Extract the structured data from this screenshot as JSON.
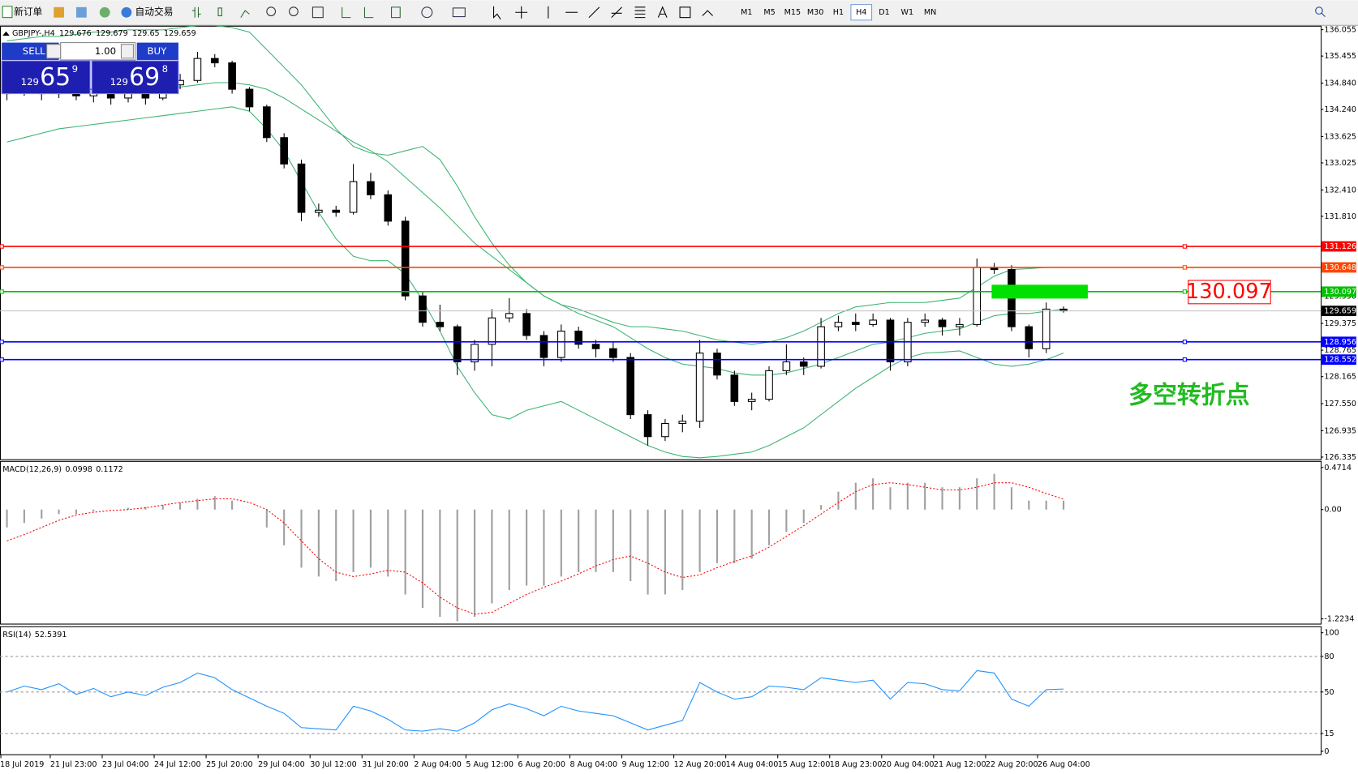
{
  "toolbar": {
    "new_order": "新订单",
    "auto_trading": "自动交易",
    "timeframes": [
      {
        "label": "M1"
      },
      {
        "label": "M5"
      },
      {
        "label": "M15"
      },
      {
        "label": "M30"
      },
      {
        "label": "H1"
      },
      {
        "label": "H4",
        "active": true
      },
      {
        "label": "D1"
      },
      {
        "label": "W1"
      },
      {
        "label": "MN"
      }
    ]
  },
  "trade_panel": {
    "sell": "SELL",
    "buy": "BUY",
    "lot": {
      "value": 1,
      "label": "1.00"
    },
    "sell_price": {
      "small": "129",
      "big": "65",
      "pip": "9"
    },
    "buy_price": {
      "small": "129",
      "big": "69",
      "pip": "8"
    }
  },
  "time_labels": [
    "18 Jul 2019",
    "21 Jul 23:00",
    "23 Jul 04:00",
    "24 Jul 12:00",
    "25 Jul 20:00",
    "29 Jul 04:00",
    "30 Jul 12:00",
    "31 Jul 20:00",
    "2 Aug 04:00",
    "5 Aug 12:00",
    "6 Aug 20:00",
    "8 Aug 04:00",
    "9 Aug 12:00",
    "12 Aug 20:00",
    "14 Aug 04:00",
    "15 Aug 12:00",
    "18 Aug 23:00",
    "20 Aug 04:00",
    "21 Aug 12:00",
    "22 Aug 20:00",
    "26 Aug 04:00"
  ],
  "chart_data": [
    {
      "type": "candlestick",
      "symbol": "GBPJPY-,H4",
      "header_values": [
        129.676,
        129.679,
        129.65,
        129.659
      ],
      "ylim": [
        126.276,
        136.134
      ],
      "yticks": [
        136.055,
        135.455,
        {
          "value": 134.84,
          "label": "134.840"
        },
        {
          "value": 134.24,
          "label": "134.240"
        },
        133.625,
        133.025,
        {
          "value": 132.41,
          "label": "132.410"
        },
        {
          "value": 131.81,
          "label": "131.810"
        },
        {
          "value": 129.99,
          "label": "129.990"
        },
        129.375,
        128.765,
        128.165,
        {
          "value": 127.55,
          "label": "127.550"
        },
        126.935,
        126.335
      ],
      "candles": [
        [
          134.6,
          134.8,
          134.45,
          134.65
        ],
        [
          134.65,
          134.85,
          134.55,
          134.7
        ],
        [
          134.7,
          134.8,
          134.45,
          134.6
        ],
        [
          134.6,
          134.9,
          134.5,
          134.75
        ],
        [
          134.75,
          134.85,
          134.45,
          134.55
        ],
        [
          134.55,
          134.8,
          134.4,
          134.7
        ],
        [
          134.7,
          134.75,
          134.35,
          134.5
        ],
        [
          134.5,
          134.75,
          134.4,
          134.65
        ],
        [
          134.65,
          134.7,
          134.35,
          134.5
        ],
        [
          134.5,
          134.95,
          134.45,
          134.8
        ],
        [
          134.8,
          135.05,
          134.7,
          134.9
        ],
        [
          134.9,
          135.55,
          134.85,
          135.4
        ],
        [
          135.4,
          135.5,
          135.2,
          135.3
        ],
        [
          135.3,
          135.35,
          134.6,
          134.7
        ],
        [
          134.7,
          134.75,
          134.2,
          134.3
        ],
        [
          134.3,
          134.35,
          133.5,
          133.6
        ],
        [
          133.6,
          133.7,
          132.9,
          133.0
        ],
        [
          133.0,
          133.1,
          131.7,
          131.9
        ],
        [
          131.9,
          132.1,
          131.8,
          131.95
        ],
        [
          131.95,
          132.05,
          131.8,
          131.9
        ],
        [
          131.9,
          133.0,
          131.85,
          132.6
        ],
        [
          132.6,
          132.8,
          132.2,
          132.3
        ],
        [
          132.3,
          132.4,
          131.6,
          131.7
        ],
        [
          131.7,
          131.8,
          129.9,
          130.0
        ],
        [
          130.0,
          130.1,
          129.3,
          129.4
        ],
        [
          129.4,
          129.8,
          129.2,
          129.3
        ],
        [
          129.3,
          129.35,
          128.2,
          128.5
        ],
        [
          128.5,
          129.0,
          128.3,
          128.9
        ],
        [
          128.9,
          129.7,
          128.4,
          129.5
        ],
        [
          129.5,
          129.95,
          129.4,
          129.6
        ],
        [
          129.6,
          129.7,
          129.0,
          129.1
        ],
        [
          129.1,
          129.2,
          128.4,
          128.6
        ],
        [
          128.6,
          129.35,
          128.5,
          129.2
        ],
        [
          129.2,
          129.3,
          128.8,
          128.9
        ],
        [
          128.9,
          129.0,
          128.6,
          128.8
        ],
        [
          128.8,
          128.95,
          128.5,
          128.6
        ],
        [
          128.6,
          128.7,
          127.2,
          127.3
        ],
        [
          127.3,
          127.4,
          126.6,
          126.8
        ],
        [
          126.8,
          127.2,
          126.7,
          127.1
        ],
        [
          127.1,
          127.3,
          126.9,
          127.15
        ],
        [
          127.15,
          129.0,
          127.0,
          128.7
        ],
        [
          128.7,
          128.8,
          128.1,
          128.2
        ],
        [
          128.2,
          128.3,
          127.5,
          127.6
        ],
        [
          127.6,
          127.8,
          127.4,
          127.65
        ],
        [
          127.65,
          128.4,
          127.6,
          128.3
        ],
        [
          128.3,
          128.9,
          128.2,
          128.5
        ],
        [
          128.5,
          128.6,
          128.2,
          128.4
        ],
        [
          128.4,
          129.5,
          128.35,
          129.3
        ],
        [
          129.3,
          129.55,
          129.2,
          129.4
        ],
        [
          129.4,
          129.6,
          129.2,
          129.35
        ],
        [
          129.35,
          129.6,
          129.3,
          129.45
        ],
        [
          129.45,
          129.5,
          128.3,
          128.5
        ],
        [
          128.5,
          129.5,
          128.4,
          129.4
        ],
        [
          129.4,
          129.6,
          129.3,
          129.45
        ],
        [
          129.45,
          129.5,
          129.1,
          129.3
        ],
        [
          129.3,
          129.5,
          129.1,
          129.35
        ],
        [
          129.35,
          130.85,
          129.3,
          130.65
        ],
        [
          130.65,
          130.75,
          130.5,
          130.6
        ],
        [
          130.6,
          130.7,
          129.2,
          129.3
        ],
        [
          129.3,
          129.35,
          128.6,
          128.8
        ],
        [
          128.8,
          129.85,
          128.7,
          129.7
        ],
        [
          129.7,
          129.76,
          129.62,
          129.66
        ]
      ],
      "series": [
        {
          "color": "#3cb371",
          "values": [
            135.8,
            135.85,
            135.9,
            135.9,
            135.95,
            136.0,
            136.0,
            136.05,
            136.05,
            136.05,
            136.1,
            136.15,
            136.15,
            136.1,
            136.0,
            135.6,
            135.2,
            134.8,
            134.3,
            133.8,
            133.4,
            133.25,
            133.2,
            133.3,
            133.4,
            133.1,
            132.5,
            131.8,
            131.2,
            130.7,
            130.3,
            130.0,
            129.8,
            129.7,
            129.55,
            129.4,
            129.3,
            129.3,
            129.25,
            129.2,
            129.1,
            129.0,
            128.95,
            128.9,
            128.95,
            129.05,
            129.2,
            129.4,
            129.6,
            129.75,
            129.8,
            129.85,
            129.85,
            129.85,
            129.9,
            129.95,
            130.2,
            130.45,
            130.6,
            130.62,
            130.65,
            130.65
          ]
        },
        {
          "color": "#3cb371",
          "values": [
            134.6,
            134.62,
            134.63,
            134.65,
            134.65,
            134.66,
            134.67,
            134.68,
            134.7,
            134.72,
            134.75,
            134.8,
            134.85,
            134.85,
            134.8,
            134.7,
            134.5,
            134.25,
            134.0,
            133.75,
            133.5,
            133.3,
            133.05,
            132.7,
            132.35,
            132.0,
            131.6,
            131.2,
            130.9,
            130.6,
            130.3,
            130.0,
            129.8,
            129.6,
            129.45,
            129.3,
            129.05,
            128.8,
            128.6,
            128.45,
            128.4,
            128.35,
            128.25,
            128.2,
            128.2,
            128.25,
            128.35,
            128.45,
            128.6,
            128.75,
            128.9,
            128.95,
            129.05,
            129.15,
            129.2,
            129.25,
            129.4,
            129.55,
            129.6,
            129.6,
            129.65,
            129.7
          ]
        },
        {
          "color": "#3cb371",
          "values": [
            133.5,
            133.6,
            133.7,
            133.8,
            133.85,
            133.9,
            133.95,
            134.0,
            134.05,
            134.1,
            134.15,
            134.2,
            134.25,
            134.3,
            134.2,
            133.8,
            133.3,
            132.6,
            131.9,
            131.3,
            130.9,
            130.8,
            130.8,
            130.5,
            129.9,
            129.2,
            128.4,
            127.8,
            127.3,
            127.2,
            127.4,
            127.5,
            127.6,
            127.4,
            127.2,
            127.0,
            126.8,
            126.6,
            126.45,
            126.35,
            126.32,
            126.35,
            126.4,
            126.45,
            126.6,
            126.8,
            127.0,
            127.3,
            127.6,
            127.9,
            128.15,
            128.4,
            128.6,
            128.7,
            128.72,
            128.75,
            128.6,
            128.45,
            128.4,
            128.45,
            128.55,
            128.7
          ]
        }
      ],
      "levels": [
        {
          "value": 131.126,
          "color": "#ff0000"
        },
        {
          "value": 130.648,
          "color": "#ff4500"
        },
        {
          "value": 130.097,
          "color": "#00c000"
        },
        {
          "value": 128.956,
          "color": "#0000ff"
        },
        {
          "value": 128.552,
          "color": "#0000ff"
        }
      ],
      "current_price": 129.659,
      "annotation": "多空转折点"
    },
    {
      "type": "macd",
      "name": "MACD(12,26,9)",
      "ylim": [
        -1.2815,
        0.539
      ],
      "yticks": [
        0.4714,
        {
          "value": 0,
          "label": "0.00"
        },
        -1.2234
      ],
      "grid": false,
      "series": [
        {
          "color": "#a0a0a0",
          "values": [
            -0.2,
            -0.15,
            -0.1,
            -0.05,
            -0.05,
            -0.02,
            0,
            0.02,
            0.03,
            0.05,
            0.08,
            0.12,
            0.15,
            0.1,
            0.0,
            -0.2,
            -0.4,
            -0.65,
            -0.75,
            -0.8,
            -0.7,
            -0.65,
            -0.75,
            -0.95,
            -1.1,
            -1.2,
            -1.25,
            -1.2,
            -1.05,
            -0.9,
            -0.85,
            -0.85,
            -0.75,
            -0.7,
            -0.7,
            -0.7,
            -0.8,
            -0.95,
            -0.95,
            -0.9,
            -0.7,
            -0.6,
            -0.6,
            -0.55,
            -0.4,
            -0.25,
            -0.15,
            0.05,
            0.2,
            0.3,
            0.35,
            0.25,
            0.3,
            0.3,
            0.25,
            0.25,
            0.35,
            0.4,
            0.25,
            0.1,
            0.1,
            0.0998
          ]
        },
        {
          "color": "#ff0000",
          "values": [
            -0.35,
            -0.28,
            -0.2,
            -0.12,
            -0.06,
            -0.03,
            -0.01,
            0.0,
            0.02,
            0.05,
            0.08,
            0.1,
            0.12,
            0.12,
            0.08,
            0.0,
            -0.15,
            -0.35,
            -0.55,
            -0.7,
            -0.75,
            -0.72,
            -0.68,
            -0.7,
            -0.82,
            -0.98,
            -1.1,
            -1.17,
            -1.15,
            -1.05,
            -0.95,
            -0.87,
            -0.8,
            -0.72,
            -0.63,
            -0.56,
            -0.52,
            -0.6,
            -0.7,
            -0.76,
            -0.73,
            -0.65,
            -0.58,
            -0.52,
            -0.42,
            -0.3,
            -0.18,
            -0.05,
            0.08,
            0.2,
            0.28,
            0.3,
            0.28,
            0.25,
            0.22,
            0.22,
            0.25,
            0.3,
            0.3,
            0.25,
            0.18,
            0.1172
          ]
        }
      ]
    },
    {
      "type": "line",
      "name": "RSI(14)",
      "ylim": [
        -2.9,
        105.1
      ],
      "yticks": [
        100,
        80,
        50,
        15,
        0
      ],
      "grid": true,
      "series": [
        {
          "color": "#1e90ff",
          "values": [
            50,
            55,
            52,
            57,
            48,
            53,
            46,
            50,
            47,
            54,
            58,
            66,
            62,
            52,
            45,
            38,
            32,
            20,
            19,
            18,
            38,
            34,
            27,
            18,
            17,
            19,
            17,
            24,
            35,
            40,
            36,
            30,
            38,
            34,
            32,
            30,
            24,
            18,
            22,
            26,
            58,
            50,
            44,
            46,
            55,
            54,
            52,
            62,
            60,
            58,
            60,
            44,
            58,
            57,
            52,
            51,
            68,
            66,
            44,
            38,
            52,
            52.5391
          ]
        }
      ]
    }
  ]
}
